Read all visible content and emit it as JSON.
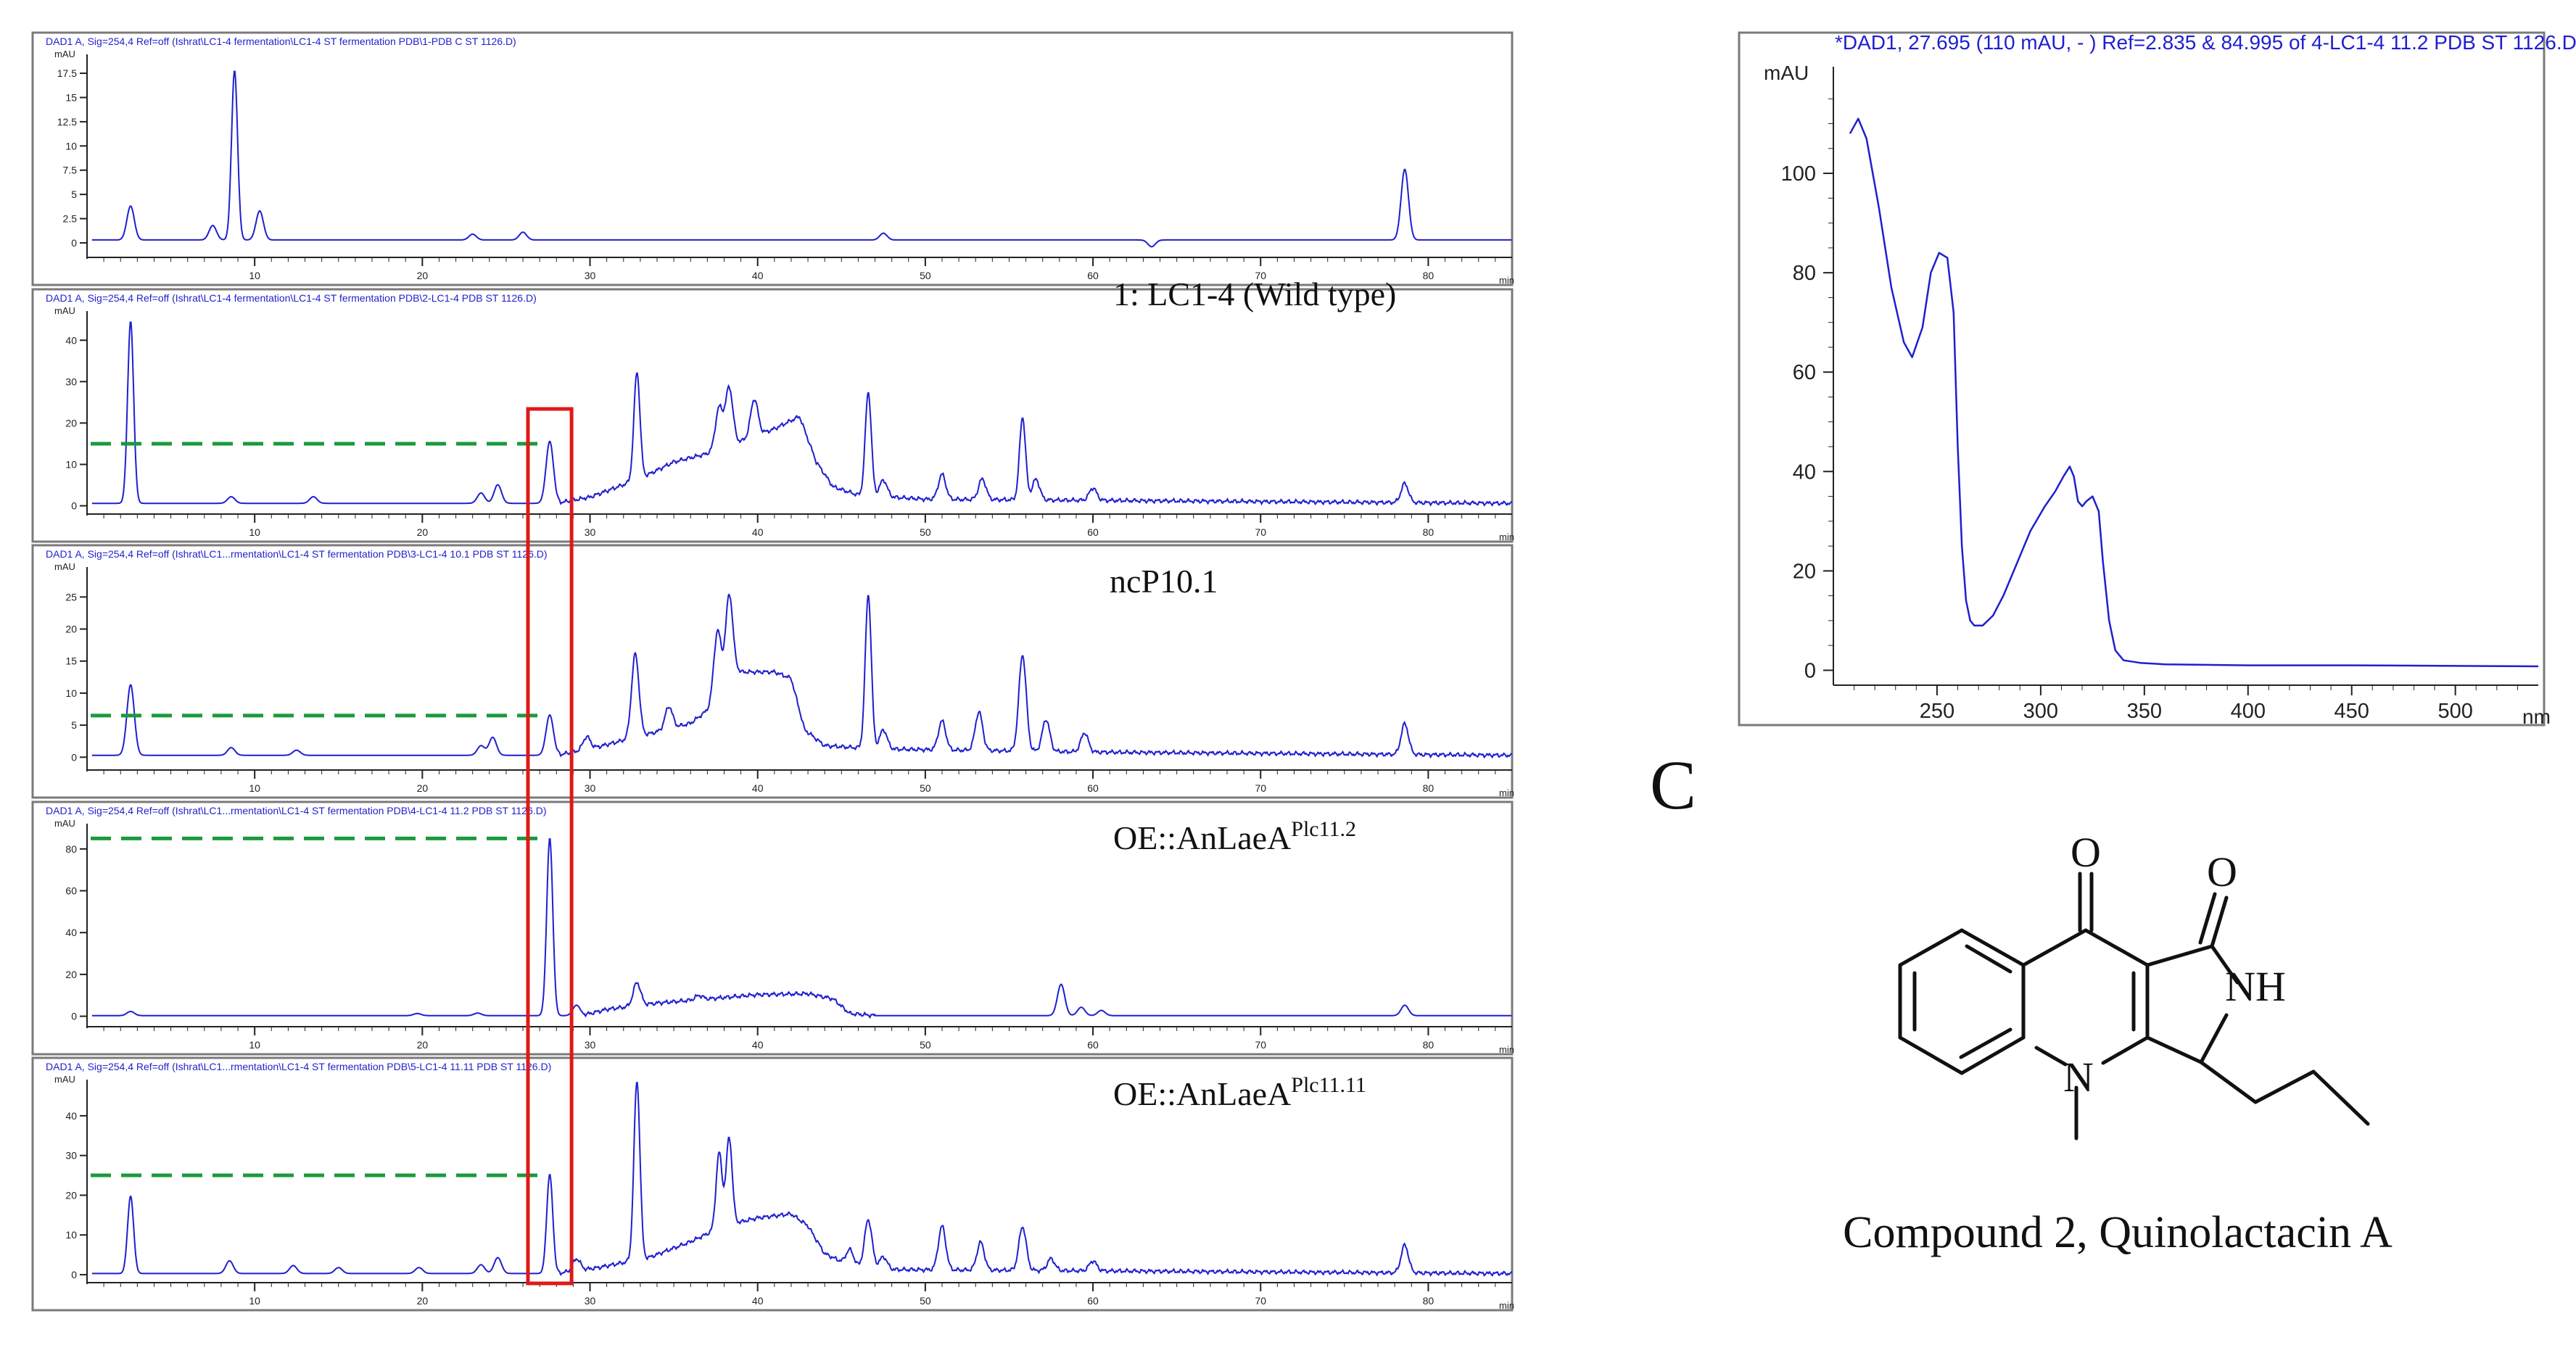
{
  "chart_data": [
    {
      "type": "line",
      "header": "DAD1 A, Sig=254,4 Ref=off (Ishrat\\LC1-4 fermentation\\LC1-4 ST fermentation PDB\\1-PDB C ST 1126.D)",
      "sample_label": "",
      "ylabel": "mAU",
      "xlabel": "min",
      "xlim": [
        0,
        85
      ],
      "ylim": [
        -1.5,
        19
      ],
      "yticks": [
        0,
        2.5,
        5,
        7.5,
        10,
        12.5,
        15,
        17.5
      ],
      "ytick_labels": [
        "0",
        "2.5",
        "5",
        "7.5",
        "10",
        "12.5",
        "15",
        "17.5"
      ],
      "xticks": [
        10,
        20,
        30,
        40,
        50,
        60,
        70,
        80
      ],
      "baseline": 0.3,
      "ref_line": null,
      "peaks": [
        [
          2.6,
          3.5
        ],
        [
          7.5,
          1.5
        ],
        [
          8.8,
          17.5
        ],
        [
          10.3,
          3.0
        ],
        [
          23,
          0.6
        ],
        [
          26,
          0.8
        ],
        [
          47.5,
          0.7
        ],
        [
          63.5,
          -0.7
        ],
        [
          78.6,
          7.3
        ]
      ]
    },
    {
      "type": "line",
      "header": "DAD1 A, Sig=254,4 Ref=off (Ishrat\\LC1-4 fermentation\\LC1-4 ST fermentation PDB\\2-LC1-4 PDB ST 1126.D)",
      "sample_label": "1: LC1-4 (Wild type)",
      "ylabel": "mAU",
      "xlabel": "min",
      "xlim": [
        0,
        85
      ],
      "ylim": [
        -2,
        46
      ],
      "yticks": [
        0,
        10,
        20,
        30,
        40
      ],
      "ytick_labels": [
        "0",
        "10",
        "20",
        "30",
        "40"
      ],
      "xticks": [
        10,
        20,
        30,
        40,
        50,
        60,
        70,
        80
      ],
      "baseline": 0.6,
      "ref_line": 15,
      "hump": [
        [
          28,
          0
        ],
        [
          30,
          1.5
        ],
        [
          33,
          6
        ],
        [
          35,
          10
        ],
        [
          37,
          12
        ],
        [
          39,
          15
        ],
        [
          41,
          18
        ],
        [
          42.5,
          21
        ],
        [
          43.5,
          10
        ],
        [
          44.5,
          4
        ],
        [
          46,
          2
        ],
        [
          50,
          1
        ],
        [
          85,
          0
        ]
      ],
      "peaks": [
        [
          2.6,
          44
        ],
        [
          8.6,
          1.6
        ],
        [
          13.5,
          1.6
        ],
        [
          23.5,
          2.5
        ],
        [
          24.5,
          4.5
        ],
        [
          27.6,
          15
        ],
        [
          32.8,
          26
        ],
        [
          37.7,
          10
        ],
        [
          38.3,
          14
        ],
        [
          39.8,
          9
        ],
        [
          46.6,
          25
        ],
        [
          47.5,
          4
        ],
        [
          51,
          6
        ],
        [
          53.4,
          5
        ],
        [
          55.8,
          20
        ],
        [
          56.6,
          5
        ],
        [
          60,
          3
        ],
        [
          78.6,
          4.6
        ]
      ]
    },
    {
      "type": "line",
      "header": "DAD1 A, Sig=254,4 Ref=off (Ishrat\\LC1...rmentation\\LC1-4 ST fermentation PDB\\3-LC1-4 10.1 PDB ST 1126.D)",
      "sample_label": "ncP10.1",
      "ylabel": "mAU",
      "xlabel": "min",
      "xlim": [
        0,
        85
      ],
      "ylim": [
        -2,
        29
      ],
      "yticks": [
        0,
        5,
        10,
        15,
        20,
        25
      ],
      "ytick_labels": [
        "0",
        "5",
        "10",
        "15",
        "20",
        "25"
      ],
      "xticks": [
        10,
        20,
        30,
        40,
        50,
        60,
        70,
        80
      ],
      "baseline": 0.3,
      "ref_line": 6.5,
      "hump": [
        [
          28,
          0
        ],
        [
          30,
          1
        ],
        [
          33,
          3
        ],
        [
          36,
          5
        ],
        [
          37.5,
          8
        ],
        [
          38.8,
          13
        ],
        [
          41,
          13
        ],
        [
          42,
          12
        ],
        [
          42.8,
          4
        ],
        [
          44,
          1.5
        ],
        [
          47,
          1
        ],
        [
          60,
          0.5
        ],
        [
          85,
          0
        ]
      ],
      "peaks": [
        [
          2.6,
          11
        ],
        [
          8.6,
          1.2
        ],
        [
          12.5,
          0.8
        ],
        [
          23.5,
          1.5
        ],
        [
          24.2,
          2.8
        ],
        [
          27.6,
          6.3
        ],
        [
          29.8,
          2
        ],
        [
          32.7,
          13
        ],
        [
          34.7,
          3.5
        ],
        [
          37.6,
          11
        ],
        [
          38.3,
          14
        ],
        [
          46.6,
          24
        ],
        [
          47.5,
          3
        ],
        [
          51,
          4.5
        ],
        [
          53.2,
          6
        ],
        [
          55.8,
          15
        ],
        [
          57.2,
          5
        ],
        [
          59.5,
          3
        ],
        [
          78.6,
          4.8
        ]
      ]
    },
    {
      "type": "line",
      "header": "DAD1 A, Sig=254,4 Ref=off (Ishrat\\LC1...rmentation\\LC1-4 ST fermentation PDB\\4-LC1-4 11.2 PDB ST 1126.D)",
      "sample_label": "OE::AnLaeA",
      "sample_label_sup": "Plc11.2",
      "ylabel": "mAU",
      "xlabel": "min",
      "xlim": [
        0,
        85
      ],
      "ylim": [
        -5,
        90
      ],
      "yticks": [
        0,
        20,
        40,
        60,
        80
      ],
      "ytick_labels": [
        "0",
        "20",
        "40",
        "60",
        "80"
      ],
      "xticks": [
        10,
        20,
        30,
        40,
        50,
        60,
        70,
        80
      ],
      "baseline": 0.3,
      "ref_line": 85,
      "hump": [
        [
          29.5,
          0
        ],
        [
          31,
          3
        ],
        [
          34,
          6
        ],
        [
          37,
          8
        ],
        [
          40,
          10
        ],
        [
          43,
          10.5
        ],
        [
          44.5,
          8
        ],
        [
          45.5,
          1
        ],
        [
          47,
          0
        ],
        [
          85,
          0
        ]
      ],
      "peaks": [
        [
          2.6,
          2
        ],
        [
          19.7,
          1
        ],
        [
          23.3,
          1.2
        ],
        [
          27.6,
          85
        ],
        [
          29.2,
          5
        ],
        [
          32.8,
          11
        ],
        [
          36.5,
          2
        ],
        [
          58.1,
          15
        ],
        [
          59.3,
          4
        ],
        [
          60.5,
          2.5
        ],
        [
          78.6,
          5
        ]
      ]
    },
    {
      "type": "line",
      "header": "DAD1 A, Sig=254,4 Ref=off (Ishrat\\LC1...rmentation\\LC1-4 ST fermentation PDB\\5-LC1-4 11.11 PDB ST 1126.D)",
      "sample_label": "OE::AnLaeA",
      "sample_label_sup": "Plc11.11",
      "ylabel": "mAU",
      "xlabel": "min",
      "xlim": [
        0,
        85
      ],
      "ylim": [
        -2,
        48
      ],
      "yticks": [
        0,
        10,
        20,
        30,
        40
      ],
      "ytick_labels": [
        "0",
        "10",
        "20",
        "30",
        "40"
      ],
      "xticks": [
        10,
        20,
        30,
        40,
        50,
        60,
        70,
        80
      ],
      "baseline": 0.3,
      "ref_line": 25,
      "hump": [
        [
          28,
          0
        ],
        [
          30.5,
          1.5
        ],
        [
          33.5,
          4
        ],
        [
          36,
          8
        ],
        [
          38,
          12
        ],
        [
          40,
          14
        ],
        [
          42,
          15
        ],
        [
          43,
          12
        ],
        [
          44,
          5
        ],
        [
          45.5,
          2
        ],
        [
          48,
          1
        ],
        [
          85,
          0
        ]
      ],
      "peaks": [
        [
          2.6,
          19.5
        ],
        [
          8.5,
          3.2
        ],
        [
          12.3,
          2
        ],
        [
          15,
          1.5
        ],
        [
          19.8,
          1.5
        ],
        [
          23.5,
          2.2
        ],
        [
          24.5,
          4
        ],
        [
          27.6,
          25
        ],
        [
          29.2,
          3
        ],
        [
          32.8,
          45
        ],
        [
          37.7,
          19
        ],
        [
          38.3,
          22
        ],
        [
          45.5,
          4
        ],
        [
          46.6,
          12
        ],
        [
          47.5,
          3
        ],
        [
          51,
          11
        ],
        [
          53.3,
          7
        ],
        [
          55.8,
          11
        ],
        [
          57.5,
          3
        ],
        [
          60,
          2.5
        ],
        [
          78.6,
          7
        ]
      ]
    },
    {
      "type": "line",
      "header": "*DAD1, 27.695 (110 mAU, - ) Ref=2.835 & 84.995 of 4-LC1-4 11.2 PDB ST 1126.D",
      "ylabel": "mAU",
      "xlabel": "nm",
      "xlim": [
        200,
        540
      ],
      "ylim": [
        -3,
        120
      ],
      "yticks": [
        0,
        20,
        40,
        60,
        80,
        100
      ],
      "ytick_labels": [
        "0",
        "20",
        "40",
        "60",
        "80",
        "100"
      ],
      "xticks": [
        250,
        300,
        350,
        400,
        450,
        500
      ],
      "xtick_labels": [
        "250",
        "300",
        "350",
        "400",
        "450",
        "500"
      ],
      "x": [
        208,
        212,
        216,
        222,
        228,
        234,
        238,
        243,
        247,
        251,
        255,
        258,
        260,
        262,
        264,
        266,
        268,
        272,
        277,
        282,
        288,
        295,
        302,
        307,
        311,
        314,
        316,
        318,
        320,
        322,
        325,
        328,
        330,
        333,
        336,
        340,
        348,
        360,
        400,
        450,
        540
      ],
      "y": [
        108,
        111,
        107,
        93,
        77,
        66,
        63,
        69,
        80,
        84,
        83,
        72,
        45,
        25,
        14,
        10,
        9,
        9,
        11,
        15,
        21,
        28,
        33,
        36,
        39,
        41,
        39,
        34,
        33,
        34,
        35,
        32,
        22,
        10,
        4,
        2,
        1.5,
        1.2,
        1.0,
        1.0,
        0.8
      ]
    }
  ],
  "panel_label": "C",
  "structure": {
    "caption": "Compound 2, Quinolactacin A",
    "atoms": {
      "o_ketone": "O",
      "o_lactam": "O",
      "nh": "NH",
      "n_ring": "N"
    }
  },
  "colors": {
    "trace": "#1f1fd0",
    "ref_line": "#1a9a3c",
    "highlight_box": "#e01818",
    "frame": "#7a7a7a",
    "header_text": "#1f1fd0"
  }
}
